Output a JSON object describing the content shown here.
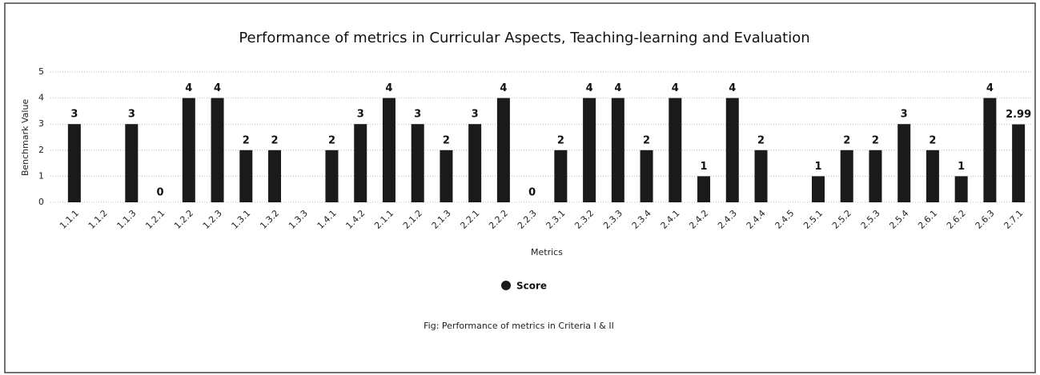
{
  "chart_data": {
    "type": "bar",
    "title": "Performance of metrics in Curricular Aspects, Teaching-learning and Evaluation",
    "x_label": "Metrics",
    "y_label": "Benchmark Value",
    "caption": "Fig: Performance of metrics in Criteria I & II",
    "categories": [
      "1.1.1",
      "1.1.2",
      "1.1.3",
      "1.2.1",
      "1.2.2",
      "1.2.3",
      "1.3.1",
      "1.3.2",
      "1.3.3",
      "1.4.1",
      "1.4.2",
      "2.1.1",
      "2.1.2",
      "2.1.3",
      "2.2.1",
      "2.2.2",
      "2.2.3",
      "2.3.1",
      "2.3.2",
      "2.3.3",
      "2.3.4",
      "2.4.1",
      "2.4.2",
      "2.4.3",
      "2.4.4",
      "2.4.5",
      "2.5.1",
      "2.5.2",
      "2.5.3",
      "2.5.4",
      "2.6.1",
      "2.6.2",
      "2.6.3",
      "2.7.1"
    ],
    "series": [
      {
        "name": "Score",
        "color": "#1a1a1a",
        "values": [
          3,
          null,
          3,
          0,
          4,
          4,
          2,
          2,
          null,
          2,
          3,
          4,
          3,
          2,
          3,
          4,
          0,
          2,
          4,
          4,
          2,
          4,
          1,
          4,
          2,
          null,
          1,
          2,
          2,
          3,
          2,
          1,
          4,
          2.99
        ]
      }
    ],
    "ylim": [
      0,
      5
    ],
    "yticks": [
      0,
      1,
      2,
      3,
      4,
      5
    ],
    "grid": true,
    "legend": "bottom"
  }
}
